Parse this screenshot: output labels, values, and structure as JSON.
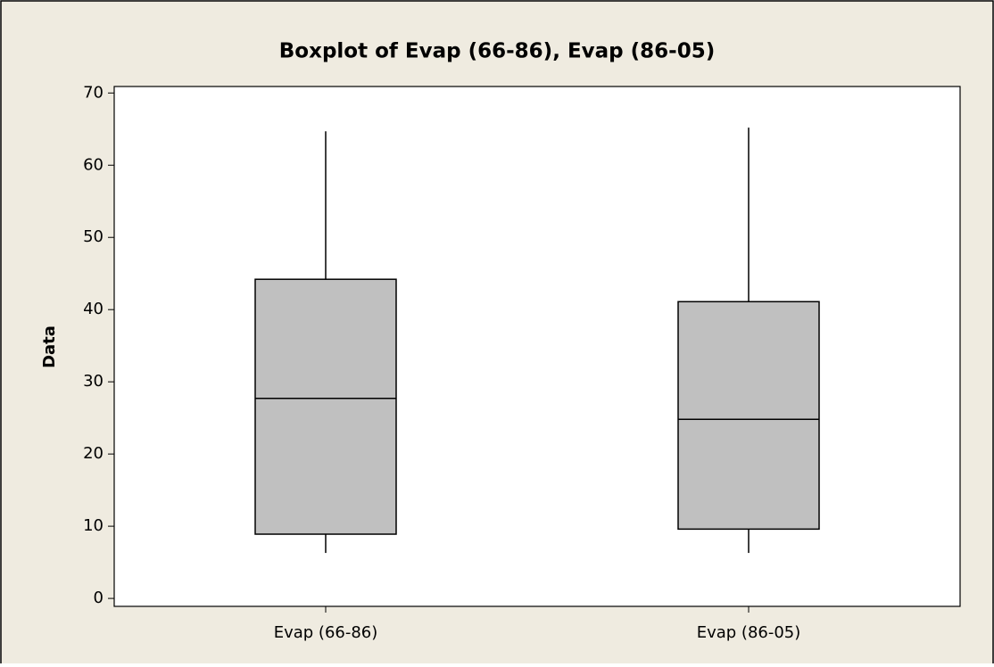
{
  "chart_data": {
    "type": "box",
    "title": "Boxplot of Evap (66-86), Evap (86-05)",
    "y_label": "Data",
    "categories": [
      "Evap (66-86)",
      "Evap (86-05)"
    ],
    "min": [
      6.3,
      6.3
    ],
    "q1": [
      8.9,
      9.6
    ],
    "median": [
      27.7,
      24.8
    ],
    "q3": [
      44.2,
      41.1
    ],
    "max": [
      64.7,
      65.2
    ],
    "color": "#c0c0c0",
    "ylim": [
      -1.1,
      70.9
    ],
    "yticks": [
      0,
      10,
      20,
      30,
      40,
      50,
      60,
      70
    ]
  }
}
